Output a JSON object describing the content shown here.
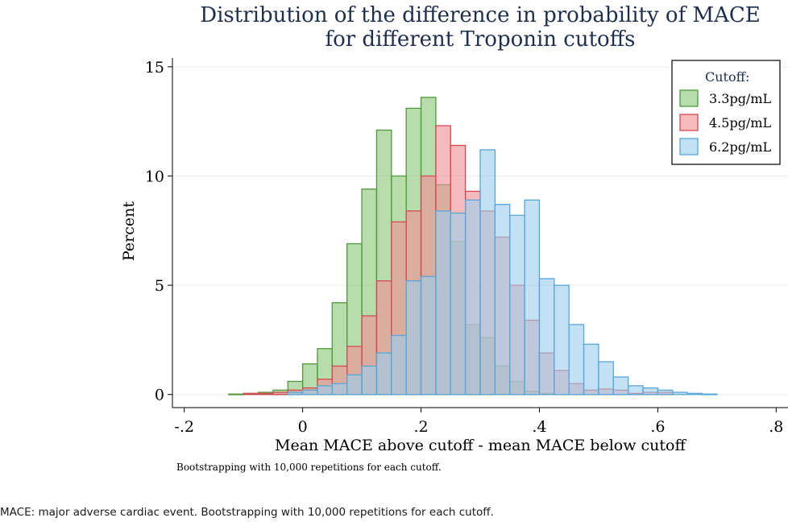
{
  "chart_data": {
    "type": "histogram",
    "title_lines": [
      "Distribution of the difference in probability of MACE",
      "for different Troponin cutoffs"
    ],
    "xlabel": "Mean MACE above cutoff - mean MACE below cutoff",
    "ylabel": "Percent",
    "note": "Bootstrapping with 10,000 repetitions for each cutoff.",
    "xlim": [
      -0.22,
      0.82
    ],
    "ylim": [
      -0.6,
      15.4
    ],
    "x_ticks": [
      -0.2,
      0,
      0.2,
      0.4,
      0.6,
      0.8
    ],
    "x_tick_labels": [
      "-.2",
      "0",
      ".2",
      ".4",
      ".6",
      ".8"
    ],
    "y_ticks": [
      0,
      5,
      10,
      15
    ],
    "y_tick_labels": [
      "0",
      "5",
      "10",
      "15"
    ],
    "bin_width": 0.025,
    "legend_title": "Cutoff:",
    "legend_position": "top-right",
    "series": [
      {
        "name": "3.3pg/mL",
        "fill": "#8cc87a",
        "stroke": "#4e9a3c",
        "bins": [
          {
            "x0": -0.125,
            "value": 0.02
          },
          {
            "x0": -0.1,
            "value": 0.05
          },
          {
            "x0": -0.075,
            "value": 0.1
          },
          {
            "x0": -0.05,
            "value": 0.2
          },
          {
            "x0": -0.025,
            "value": 0.6
          },
          {
            "x0": 0.0,
            "value": 1.4
          },
          {
            "x0": 0.025,
            "value": 2.1
          },
          {
            "x0": 0.05,
            "value": 4.2
          },
          {
            "x0": 0.075,
            "value": 6.9
          },
          {
            "x0": 0.1,
            "value": 9.4
          },
          {
            "x0": 0.125,
            "value": 12.1
          },
          {
            "x0": 0.15,
            "value": 10.0
          },
          {
            "x0": 0.175,
            "value": 13.1
          },
          {
            "x0": 0.2,
            "value": 13.6
          },
          {
            "x0": 0.225,
            "value": 9.6
          },
          {
            "x0": 0.25,
            "value": 7.0
          },
          {
            "x0": 0.275,
            "value": 3.2
          },
          {
            "x0": 0.3,
            "value": 2.6
          },
          {
            "x0": 0.325,
            "value": 1.3
          },
          {
            "x0": 0.35,
            "value": 0.6
          },
          {
            "x0": 0.375,
            "value": 0.15
          },
          {
            "x0": 0.4,
            "value": 0.05
          }
        ]
      },
      {
        "name": "4.5pg/mL",
        "fill": "#ef8f94",
        "stroke": "#d44a52",
        "bins": [
          {
            "x0": -0.1,
            "value": 0.05
          },
          {
            "x0": -0.075,
            "value": 0.05
          },
          {
            "x0": -0.05,
            "value": 0.1
          },
          {
            "x0": -0.025,
            "value": 0.2
          },
          {
            "x0": 0.0,
            "value": 0.3
          },
          {
            "x0": 0.025,
            "value": 0.7
          },
          {
            "x0": 0.05,
            "value": 1.3
          },
          {
            "x0": 0.075,
            "value": 2.2
          },
          {
            "x0": 0.1,
            "value": 3.6
          },
          {
            "x0": 0.125,
            "value": 5.2
          },
          {
            "x0": 0.15,
            "value": 7.9
          },
          {
            "x0": 0.175,
            "value": 8.4
          },
          {
            "x0": 0.2,
            "value": 10.0
          },
          {
            "x0": 0.225,
            "value": 12.3
          },
          {
            "x0": 0.25,
            "value": 11.4
          },
          {
            "x0": 0.275,
            "value": 9.3
          },
          {
            "x0": 0.3,
            "value": 8.4
          },
          {
            "x0": 0.325,
            "value": 7.2
          },
          {
            "x0": 0.35,
            "value": 5.0
          },
          {
            "x0": 0.375,
            "value": 3.4
          },
          {
            "x0": 0.4,
            "value": 1.9
          },
          {
            "x0": 0.425,
            "value": 1.1
          },
          {
            "x0": 0.45,
            "value": 0.5
          },
          {
            "x0": 0.475,
            "value": 0.2
          },
          {
            "x0": 0.5,
            "value": 0.25
          },
          {
            "x0": 0.525,
            "value": 0.2
          },
          {
            "x0": 0.55,
            "value": 0.05
          },
          {
            "x0": 0.575,
            "value": 0.1
          },
          {
            "x0": 0.6,
            "value": 0.1
          }
        ]
      },
      {
        "name": "6.2pg/mL",
        "fill": "#9ccfee",
        "stroke": "#5aa6d8",
        "bins": [
          {
            "x0": -0.025,
            "value": 0.1
          },
          {
            "x0": 0.0,
            "value": 0.2
          },
          {
            "x0": 0.025,
            "value": 0.4
          },
          {
            "x0": 0.05,
            "value": 0.5
          },
          {
            "x0": 0.075,
            "value": 0.9
          },
          {
            "x0": 0.1,
            "value": 1.3
          },
          {
            "x0": 0.125,
            "value": 1.9
          },
          {
            "x0": 0.15,
            "value": 2.7
          },
          {
            "x0": 0.175,
            "value": 5.2
          },
          {
            "x0": 0.2,
            "value": 5.4
          },
          {
            "x0": 0.225,
            "value": 8.4
          },
          {
            "x0": 0.25,
            "value": 8.3
          },
          {
            "x0": 0.275,
            "value": 8.9
          },
          {
            "x0": 0.3,
            "value": 11.2
          },
          {
            "x0": 0.325,
            "value": 8.7
          },
          {
            "x0": 0.35,
            "value": 8.2
          },
          {
            "x0": 0.375,
            "value": 8.9
          },
          {
            "x0": 0.4,
            "value": 5.3
          },
          {
            "x0": 0.425,
            "value": 5.0
          },
          {
            "x0": 0.45,
            "value": 3.2
          },
          {
            "x0": 0.475,
            "value": 2.3
          },
          {
            "x0": 0.5,
            "value": 1.5
          },
          {
            "x0": 0.525,
            "value": 0.8
          },
          {
            "x0": 0.55,
            "value": 0.4
          },
          {
            "x0": 0.575,
            "value": 0.3
          },
          {
            "x0": 0.6,
            "value": 0.2
          },
          {
            "x0": 0.625,
            "value": 0.1
          },
          {
            "x0": 0.65,
            "value": 0.05
          },
          {
            "x0": 0.675,
            "value": 0.02
          }
        ]
      }
    ]
  },
  "caption": "MACE: major adverse cardiac event. Bootstrapping with 10,000 repetitions for each cutoff."
}
